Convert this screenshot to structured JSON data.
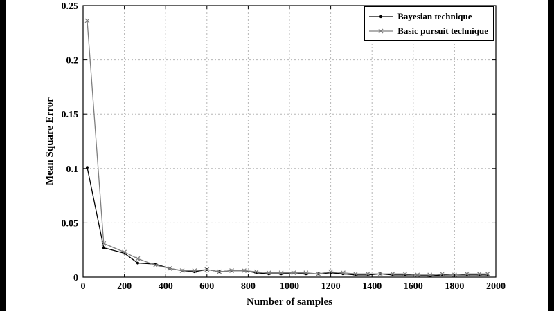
{
  "frame": {
    "letterbox_color": "#000000",
    "background": "#ffffff"
  },
  "chart_data": {
    "type": "line",
    "title": "",
    "xlabel": "Number of samples",
    "ylabel": "Mean Square Error",
    "xlim": [
      0,
      2000
    ],
    "ylim": [
      0,
      0.25
    ],
    "xticks": [
      0,
      200,
      400,
      600,
      800,
      1000,
      1200,
      1400,
      1600,
      1800,
      2000
    ],
    "xtick_labels": [
      "0",
      "200",
      "400",
      "600",
      "800",
      "1000",
      "1200",
      "1400",
      "1600",
      "1800",
      "2000"
    ],
    "yticks": [
      0,
      0.05,
      0.1,
      0.15,
      0.2,
      0.25
    ],
    "ytick_labels": [
      "0",
      "0.05",
      "0.1",
      "0.15",
      "0.2",
      "0.25"
    ],
    "grid": true,
    "grid_color": "#b5b5b5",
    "legend_position": "top-right",
    "x": [
      20,
      100,
      200,
      265,
      350,
      420,
      480,
      540,
      600,
      660,
      720,
      780,
      840,
      900,
      960,
      1020,
      1080,
      1140,
      1200,
      1260,
      1320,
      1380,
      1440,
      1500,
      1560,
      1620,
      1680,
      1740,
      1800,
      1860,
      1920,
      1960
    ],
    "series": [
      {
        "name": "Bayesian technique",
        "color": "#000000",
        "marker": "dot",
        "y": [
          0.101,
          0.027,
          0.022,
          0.013,
          0.012,
          0.008,
          0.006,
          0.005,
          0.007,
          0.005,
          0.006,
          0.006,
          0.004,
          0.003,
          0.003,
          0.004,
          0.003,
          0.003,
          0.004,
          0.003,
          0.002,
          0.002,
          0.003,
          0.002,
          0.002,
          0.002,
          0.001,
          0.002,
          0.002,
          0.002,
          0.002,
          0.002
        ]
      },
      {
        "name": "Basic pursuit technique",
        "color": "#7f7f7f",
        "marker": "x",
        "y": [
          0.236,
          0.031,
          0.023,
          0.017,
          0.011,
          0.008,
          0.006,
          0.006,
          0.007,
          0.005,
          0.006,
          0.006,
          0.005,
          0.004,
          0.004,
          0.004,
          0.004,
          0.003,
          0.005,
          0.004,
          0.003,
          0.003,
          0.003,
          0.003,
          0.003,
          0.002,
          0.002,
          0.003,
          0.002,
          0.003,
          0.003,
          0.003
        ]
      }
    ]
  }
}
